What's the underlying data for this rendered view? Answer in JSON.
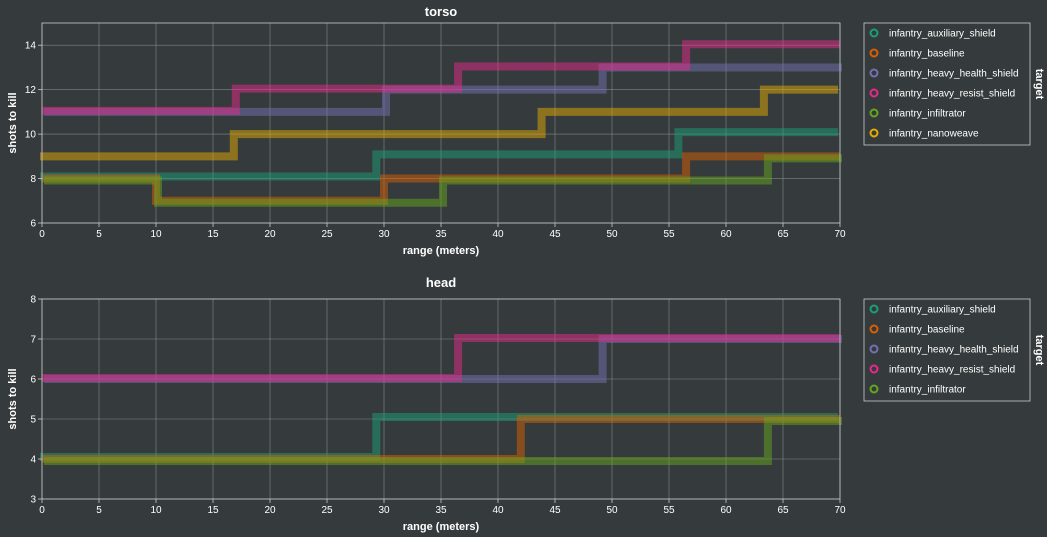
{
  "colors": {
    "infantry_auxiliary_shield": "#1b9e77",
    "infantry_baseline": "#d95f02",
    "infantry_heavy_health_shield": "#7570b3",
    "infantry_heavy_resist_shield": "#e7298a",
    "infantry_infiltrator": "#66a61e",
    "infantry_nanoweave": "#e6ab02"
  },
  "chart_data": [
    {
      "type": "line",
      "step": "post",
      "title": "torso",
      "xlabel": "range (meters)",
      "ylabel": "shots to kill",
      "xlim": [
        0,
        70
      ],
      "ylim": [
        6,
        15
      ],
      "xticks": [
        0,
        5,
        10,
        15,
        20,
        25,
        30,
        35,
        40,
        45,
        50,
        55,
        60,
        65,
        70
      ],
      "yticks": [
        6,
        8,
        10,
        12,
        14
      ],
      "grid": true,
      "legend": {
        "title": "target",
        "position": "right"
      },
      "series": [
        {
          "name": "infantry_auxiliary_shield",
          "x": [
            0,
            29.5,
            56,
            70
          ],
          "y": [
            8,
            9,
            10,
            10
          ]
        },
        {
          "name": "infantry_baseline",
          "x": [
            0,
            10,
            30,
            42,
            56.5,
            63,
            70
          ],
          "y": [
            8,
            7,
            8,
            8,
            9,
            9,
            9
          ]
        },
        {
          "name": "infantry_heavy_health_shield",
          "x": [
            0,
            17,
            30,
            49,
            70
          ],
          "y": [
            11,
            11,
            12,
            13,
            13
          ]
        },
        {
          "name": "infantry_heavy_resist_shield",
          "x": [
            0,
            17,
            36.5,
            56.5,
            70
          ],
          "y": [
            11,
            12,
            13,
            14,
            14
          ]
        },
        {
          "name": "infantry_infiltrator",
          "x": [
            0,
            10,
            35,
            63.5,
            70
          ],
          "y": [
            8,
            7,
            8,
            9,
            9
          ]
        },
        {
          "name": "infantry_nanoweave",
          "x": [
            0,
            17,
            44,
            63.5,
            70
          ],
          "y": [
            9,
            10,
            11,
            12,
            12
          ]
        }
      ]
    },
    {
      "type": "line",
      "step": "post",
      "title": "head",
      "xlabel": "range (meters)",
      "ylabel": "shots to kill",
      "xlim": [
        0,
        70
      ],
      "ylim": [
        3,
        8
      ],
      "xticks": [
        0,
        5,
        10,
        15,
        20,
        25,
        30,
        35,
        40,
        45,
        50,
        55,
        60,
        65,
        70
      ],
      "yticks": [
        3,
        4,
        5,
        6,
        7,
        8
      ],
      "grid": true,
      "legend": {
        "title": "target",
        "position": "right"
      },
      "series": [
        {
          "name": "infantry_auxiliary_shield",
          "x": [
            0,
            29.5,
            70
          ],
          "y": [
            4,
            5,
            5
          ]
        },
        {
          "name": "infantry_baseline",
          "x": [
            0,
            42,
            70
          ],
          "y": [
            4,
            5,
            5
          ]
        },
        {
          "name": "infantry_heavy_health_shield",
          "x": [
            0,
            49,
            70
          ],
          "y": [
            6,
            7,
            7
          ]
        },
        {
          "name": "infantry_heavy_resist_shield",
          "x": [
            0,
            36.5,
            70
          ],
          "y": [
            6,
            7,
            7
          ]
        },
        {
          "name": "infantry_infiltrator",
          "x": [
            0,
            63.5,
            70
          ],
          "y": [
            4,
            5,
            5
          ]
        }
      ]
    }
  ]
}
